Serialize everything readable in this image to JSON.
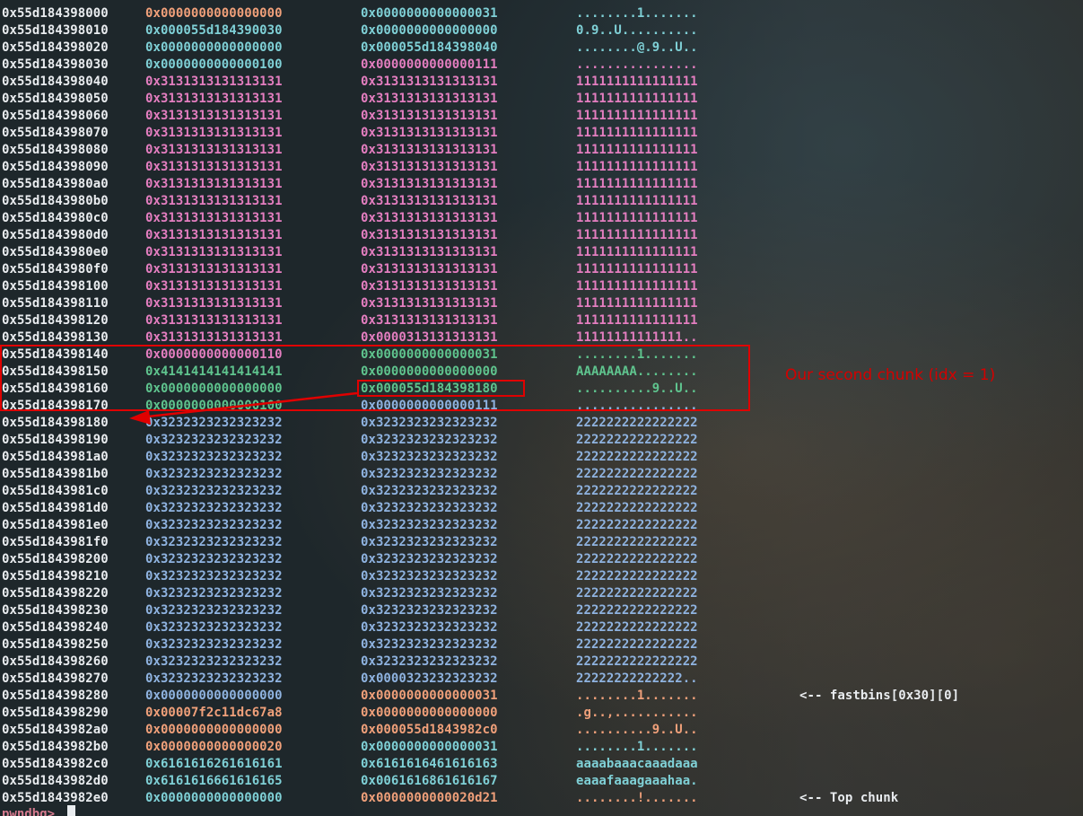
{
  "colors": {
    "address": "#e9ecef",
    "orange": "#f0a07a",
    "cyan": "#7fd0d6",
    "pink": "#e47ec0",
    "green": "#5fc48e",
    "blue": "#8fb3e0",
    "annotation_red": "#e00000"
  },
  "rows": [
    {
      "addr": "0x55d184398000",
      "q1": "0x0000000000000000",
      "c1": "orange",
      "q2": "0x0000000000000031",
      "c2": "cyan",
      "ascii": "........1.......",
      "ca": "cyan",
      "note": ""
    },
    {
      "addr": "0x55d184398010",
      "q1": "0x000055d184390030",
      "c1": "cyan",
      "q2": "0x0000000000000000",
      "c2": "cyan",
      "ascii": "0.9..U..........",
      "ca": "cyan",
      "note": ""
    },
    {
      "addr": "0x55d184398020",
      "q1": "0x0000000000000000",
      "c1": "cyan",
      "q2": "0x000055d184398040",
      "c2": "cyan",
      "ascii": "........@.9..U..",
      "ca": "cyan",
      "note": ""
    },
    {
      "addr": "0x55d184398030",
      "q1": "0x0000000000000100",
      "c1": "cyan",
      "q2": "0x0000000000000111",
      "c2": "pink",
      "ascii": "................",
      "ca": "pink",
      "note": ""
    },
    {
      "addr": "0x55d184398040",
      "q1": "0x3131313131313131",
      "c1": "pink",
      "q2": "0x3131313131313131",
      "c2": "pink",
      "ascii": "1111111111111111",
      "ca": "pink",
      "note": ""
    },
    {
      "addr": "0x55d184398050",
      "q1": "0x3131313131313131",
      "c1": "pink",
      "q2": "0x3131313131313131",
      "c2": "pink",
      "ascii": "1111111111111111",
      "ca": "pink",
      "note": ""
    },
    {
      "addr": "0x55d184398060",
      "q1": "0x3131313131313131",
      "c1": "pink",
      "q2": "0x3131313131313131",
      "c2": "pink",
      "ascii": "1111111111111111",
      "ca": "pink",
      "note": ""
    },
    {
      "addr": "0x55d184398070",
      "q1": "0x3131313131313131",
      "c1": "pink",
      "q2": "0x3131313131313131",
      "c2": "pink",
      "ascii": "1111111111111111",
      "ca": "pink",
      "note": ""
    },
    {
      "addr": "0x55d184398080",
      "q1": "0x3131313131313131",
      "c1": "pink",
      "q2": "0x3131313131313131",
      "c2": "pink",
      "ascii": "1111111111111111",
      "ca": "pink",
      "note": ""
    },
    {
      "addr": "0x55d184398090",
      "q1": "0x3131313131313131",
      "c1": "pink",
      "q2": "0x3131313131313131",
      "c2": "pink",
      "ascii": "1111111111111111",
      "ca": "pink",
      "note": ""
    },
    {
      "addr": "0x55d1843980a0",
      "q1": "0x3131313131313131",
      "c1": "pink",
      "q2": "0x3131313131313131",
      "c2": "pink",
      "ascii": "1111111111111111",
      "ca": "pink",
      "note": ""
    },
    {
      "addr": "0x55d1843980b0",
      "q1": "0x3131313131313131",
      "c1": "pink",
      "q2": "0x3131313131313131",
      "c2": "pink",
      "ascii": "1111111111111111",
      "ca": "pink",
      "note": ""
    },
    {
      "addr": "0x55d1843980c0",
      "q1": "0x3131313131313131",
      "c1": "pink",
      "q2": "0x3131313131313131",
      "c2": "pink",
      "ascii": "1111111111111111",
      "ca": "pink",
      "note": ""
    },
    {
      "addr": "0x55d1843980d0",
      "q1": "0x3131313131313131",
      "c1": "pink",
      "q2": "0x3131313131313131",
      "c2": "pink",
      "ascii": "1111111111111111",
      "ca": "pink",
      "note": ""
    },
    {
      "addr": "0x55d1843980e0",
      "q1": "0x3131313131313131",
      "c1": "pink",
      "q2": "0x3131313131313131",
      "c2": "pink",
      "ascii": "1111111111111111",
      "ca": "pink",
      "note": ""
    },
    {
      "addr": "0x55d1843980f0",
      "q1": "0x3131313131313131",
      "c1": "pink",
      "q2": "0x3131313131313131",
      "c2": "pink",
      "ascii": "1111111111111111",
      "ca": "pink",
      "note": ""
    },
    {
      "addr": "0x55d184398100",
      "q1": "0x3131313131313131",
      "c1": "pink",
      "q2": "0x3131313131313131",
      "c2": "pink",
      "ascii": "1111111111111111",
      "ca": "pink",
      "note": ""
    },
    {
      "addr": "0x55d184398110",
      "q1": "0x3131313131313131",
      "c1": "pink",
      "q2": "0x3131313131313131",
      "c2": "pink",
      "ascii": "1111111111111111",
      "ca": "pink",
      "note": ""
    },
    {
      "addr": "0x55d184398120",
      "q1": "0x3131313131313131",
      "c1": "pink",
      "q2": "0x3131313131313131",
      "c2": "pink",
      "ascii": "1111111111111111",
      "ca": "pink",
      "note": ""
    },
    {
      "addr": "0x55d184398130",
      "q1": "0x3131313131313131",
      "c1": "pink",
      "q2": "0x0000313131313131",
      "c2": "pink",
      "ascii": "11111111111111..",
      "ca": "pink",
      "note": ""
    },
    {
      "addr": "0x55d184398140",
      "q1": "0x0000000000000110",
      "c1": "pink",
      "q2": "0x0000000000000031",
      "c2": "green",
      "ascii": "........1.......",
      "ca": "green",
      "note": ""
    },
    {
      "addr": "0x55d184398150",
      "q1": "0x4141414141414141",
      "c1": "green",
      "q2": "0x0000000000000000",
      "c2": "green",
      "ascii": "AAAAAAAA........",
      "ca": "green",
      "note": ""
    },
    {
      "addr": "0x55d184398160",
      "q1": "0x0000000000000000",
      "c1": "green",
      "q2": "0x000055d184398180",
      "c2": "green",
      "ascii": "..........9..U..",
      "ca": "green",
      "note": ""
    },
    {
      "addr": "0x55d184398170",
      "q1": "0x0000000000000100",
      "c1": "green",
      "q2": "0x0000000000000111",
      "c2": "blue",
      "ascii": "................",
      "ca": "blue",
      "note": ""
    },
    {
      "addr": "0x55d184398180",
      "q1": "0x3232323232323232",
      "c1": "blue",
      "q2": "0x3232323232323232",
      "c2": "blue",
      "ascii": "2222222222222222",
      "ca": "blue",
      "note": ""
    },
    {
      "addr": "0x55d184398190",
      "q1": "0x3232323232323232",
      "c1": "blue",
      "q2": "0x3232323232323232",
      "c2": "blue",
      "ascii": "2222222222222222",
      "ca": "blue",
      "note": ""
    },
    {
      "addr": "0x55d1843981a0",
      "q1": "0x3232323232323232",
      "c1": "blue",
      "q2": "0x3232323232323232",
      "c2": "blue",
      "ascii": "2222222222222222",
      "ca": "blue",
      "note": ""
    },
    {
      "addr": "0x55d1843981b0",
      "q1": "0x3232323232323232",
      "c1": "blue",
      "q2": "0x3232323232323232",
      "c2": "blue",
      "ascii": "2222222222222222",
      "ca": "blue",
      "note": ""
    },
    {
      "addr": "0x55d1843981c0",
      "q1": "0x3232323232323232",
      "c1": "blue",
      "q2": "0x3232323232323232",
      "c2": "blue",
      "ascii": "2222222222222222",
      "ca": "blue",
      "note": ""
    },
    {
      "addr": "0x55d1843981d0",
      "q1": "0x3232323232323232",
      "c1": "blue",
      "q2": "0x3232323232323232",
      "c2": "blue",
      "ascii": "2222222222222222",
      "ca": "blue",
      "note": ""
    },
    {
      "addr": "0x55d1843981e0",
      "q1": "0x3232323232323232",
      "c1": "blue",
      "q2": "0x3232323232323232",
      "c2": "blue",
      "ascii": "2222222222222222",
      "ca": "blue",
      "note": ""
    },
    {
      "addr": "0x55d1843981f0",
      "q1": "0x3232323232323232",
      "c1": "blue",
      "q2": "0x3232323232323232",
      "c2": "blue",
      "ascii": "2222222222222222",
      "ca": "blue",
      "note": ""
    },
    {
      "addr": "0x55d184398200",
      "q1": "0x3232323232323232",
      "c1": "blue",
      "q2": "0x3232323232323232",
      "c2": "blue",
      "ascii": "2222222222222222",
      "ca": "blue",
      "note": ""
    },
    {
      "addr": "0x55d184398210",
      "q1": "0x3232323232323232",
      "c1": "blue",
      "q2": "0x3232323232323232",
      "c2": "blue",
      "ascii": "2222222222222222",
      "ca": "blue",
      "note": ""
    },
    {
      "addr": "0x55d184398220",
      "q1": "0x3232323232323232",
      "c1": "blue",
      "q2": "0x3232323232323232",
      "c2": "blue",
      "ascii": "2222222222222222",
      "ca": "blue",
      "note": ""
    },
    {
      "addr": "0x55d184398230",
      "q1": "0x3232323232323232",
      "c1": "blue",
      "q2": "0x3232323232323232",
      "c2": "blue",
      "ascii": "2222222222222222",
      "ca": "blue",
      "note": ""
    },
    {
      "addr": "0x55d184398240",
      "q1": "0x3232323232323232",
      "c1": "blue",
      "q2": "0x3232323232323232",
      "c2": "blue",
      "ascii": "2222222222222222",
      "ca": "blue",
      "note": ""
    },
    {
      "addr": "0x55d184398250",
      "q1": "0x3232323232323232",
      "c1": "blue",
      "q2": "0x3232323232323232",
      "c2": "blue",
      "ascii": "2222222222222222",
      "ca": "blue",
      "note": ""
    },
    {
      "addr": "0x55d184398260",
      "q1": "0x3232323232323232",
      "c1": "blue",
      "q2": "0x3232323232323232",
      "c2": "blue",
      "ascii": "2222222222222222",
      "ca": "blue",
      "note": ""
    },
    {
      "addr": "0x55d184398270",
      "q1": "0x3232323232323232",
      "c1": "blue",
      "q2": "0x0000323232323232",
      "c2": "blue",
      "ascii": "22222222222222..",
      "ca": "blue",
      "note": ""
    },
    {
      "addr": "0x55d184398280",
      "q1": "0x0000000000000000",
      "c1": "blue",
      "q2": "0x0000000000000031",
      "c2": "orange",
      "ascii": "........1.......",
      "ca": "orange",
      "note": "<-- fastbins[0x30][0]"
    },
    {
      "addr": "0x55d184398290",
      "q1": "0x00007f2c11dc67a8",
      "c1": "orange",
      "q2": "0x0000000000000000",
      "c2": "orange",
      "ascii": ".g..,...........",
      "ca": "orange",
      "note": ""
    },
    {
      "addr": "0x55d1843982a0",
      "q1": "0x0000000000000000",
      "c1": "orange",
      "q2": "0x000055d1843982c0",
      "c2": "orange",
      "ascii": "..........9..U..",
      "ca": "orange",
      "note": ""
    },
    {
      "addr": "0x55d1843982b0",
      "q1": "0x0000000000000020",
      "c1": "orange",
      "q2": "0x0000000000000031",
      "c2": "cyan",
      "ascii": "........1.......",
      "ca": "cyan",
      "note": ""
    },
    {
      "addr": "0x55d1843982c0",
      "q1": "0x6161616261616161",
      "c1": "cyan",
      "q2": "0x6161616461616163",
      "c2": "cyan",
      "ascii": "aaaabaaacaaadaaa",
      "ca": "cyan",
      "note": ""
    },
    {
      "addr": "0x55d1843982d0",
      "q1": "0x6161616661616165",
      "c1": "cyan",
      "q2": "0x0061616861616167",
      "c2": "cyan",
      "ascii": "eaaafaaagaaahaa.",
      "ca": "cyan",
      "note": ""
    },
    {
      "addr": "0x55d1843982e0",
      "q1": "0x0000000000000000",
      "c1": "cyan",
      "q2": "0x0000000000020d21",
      "c2": "orange",
      "ascii": "........!.......",
      "ca": "orange",
      "note": "<-- Top chunk"
    }
  ],
  "annotation": {
    "chunk_label": "Our second chunk (idx = 1)"
  },
  "prompt": {
    "text": "pwndbg> "
  }
}
